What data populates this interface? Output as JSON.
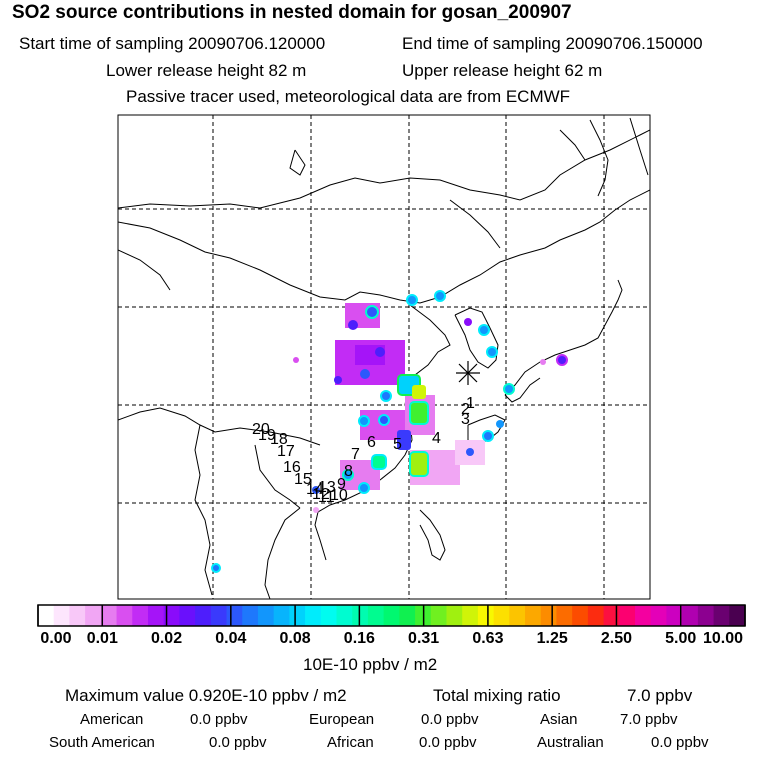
{
  "header": {
    "title": "SO2 source contributions in nested domain for gosan_200907",
    "start_time": "Start time of sampling 20090706.120000",
    "end_time": "End time of sampling 20090706.150000",
    "lower_release": "Lower release height   82 m",
    "upper_release": "Upper release height   62 m",
    "tracer_note": "Passive tracer used, meteorological data are from ECMWF"
  },
  "map": {
    "source_labels": [
      "1",
      "2",
      "3",
      "4",
      "5",
      "6",
      "7",
      "8",
      "9",
      "10",
      "11",
      "12",
      "13",
      "14",
      "15",
      "16",
      "17",
      "18",
      "19",
      "20"
    ],
    "receptor_icon": "asterisk-receptor-icon"
  },
  "colorbar": {
    "tick_labels": [
      "0.00",
      "0.01",
      "0.02",
      "0.04",
      "0.08",
      "0.16",
      "0.31",
      "0.63",
      "1.25",
      "2.50",
      "5.00",
      "10.00"
    ],
    "unit": "10E-10 ppbv / m2",
    "colors": [
      "#ffffff",
      "#fde6fd",
      "#f8c8f8",
      "#f1a6f4",
      "#e67cf0",
      "#d94ff0",
      "#c22cf5",
      "#a514f8",
      "#8a0cfa",
      "#6a10fc",
      "#4e1efc",
      "#3a3afc",
      "#2c58fc",
      "#1e78fc",
      "#1296fc",
      "#08b4fc",
      "#00d2fc",
      "#00ecfc",
      "#00fcf0",
      "#00fcd0",
      "#00fcb0",
      "#00fc90",
      "#00f870",
      "#10f050",
      "#40f030",
      "#70f020",
      "#a0f010",
      "#d0f408",
      "#f8f800",
      "#fce000",
      "#fcc400",
      "#fca800",
      "#fc8c00",
      "#fc6c00",
      "#fc4c00",
      "#fc2c10",
      "#fc1040",
      "#fc0070",
      "#f400a0",
      "#e400b8",
      "#cc00c0",
      "#b000b0",
      "#8c0090",
      "#6a0070",
      "#4a0050"
    ]
  },
  "stats": {
    "max_value": "Maximum value  0.920E-10 ppbv / m2",
    "total_label": "Total mixing ratio",
    "total_value": "7.0 ppbv",
    "regions": [
      {
        "name": "American",
        "value": "0.0 ppbv"
      },
      {
        "name": "European",
        "value": "0.0 ppbv"
      },
      {
        "name": "Asian",
        "value": "7.0 ppbv"
      },
      {
        "name": "South American",
        "value": "0.0 ppbv"
      },
      {
        "name": "African",
        "value": "0.0 ppbv"
      },
      {
        "name": "Australian",
        "value": "0.0 ppbv"
      }
    ]
  }
}
